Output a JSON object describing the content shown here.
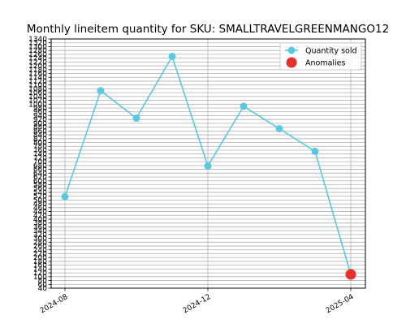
{
  "chart_data": {
    "type": "line",
    "title": "Monthly lineitem quantity for SKU: SMALLTRAVELGREENMANGO12",
    "xlabel": "",
    "ylabel": "",
    "x_ticks": [
      "2024-08",
      "2024-12",
      "2025-04"
    ],
    "x": [
      "2024-08",
      "2024-09",
      "2024-10",
      "2024-11",
      "2024-12",
      "2025-01",
      "2025-02",
      "2025-03",
      "2025-04"
    ],
    "ylim": [
      40,
      1340
    ],
    "y_ticks": [
      40,
      60,
      80,
      100,
      120,
      140,
      160,
      180,
      200,
      220,
      240,
      260,
      280,
      300,
      320,
      340,
      360,
      380,
      400,
      420,
      440,
      460,
      480,
      500,
      520,
      540,
      560,
      580,
      600,
      620,
      640,
      660,
      680,
      700,
      720,
      740,
      760,
      780,
      800,
      820,
      840,
      860,
      880,
      900,
      920,
      940,
      960,
      980,
      1000,
      1020,
      1040,
      1060,
      1080,
      1100,
      1120,
      1140,
      1160,
      1180,
      1200,
      1220,
      1240,
      1260,
      1280,
      1300,
      1320,
      1340
    ],
    "grid": true,
    "legend_position": "top-right",
    "series": [
      {
        "name": "Quantity sold",
        "color": "#5bc8e0",
        "marker": "circle",
        "values": [
          517,
          1070,
          927,
          1249,
          677,
          989,
          872,
          754,
          112
        ]
      }
    ],
    "anomalies": {
      "name": "Anomalies",
      "color": "#e8312e",
      "points": [
        {
          "x": "2025-04",
          "y": 112
        }
      ]
    }
  }
}
